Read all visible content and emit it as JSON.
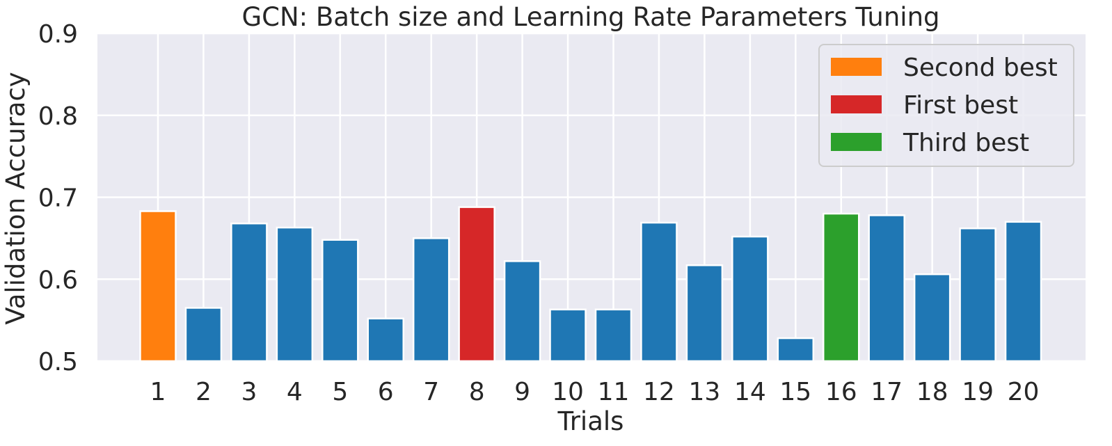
{
  "chart_data": {
    "type": "bar",
    "title": "GCN: Batch size and Learning Rate Parameters Tuning",
    "xlabel": "Trials",
    "ylabel": "Validation Accuracy",
    "categories": [
      "1",
      "2",
      "3",
      "4",
      "5",
      "6",
      "7",
      "8",
      "9",
      "10",
      "11",
      "12",
      "13",
      "14",
      "15",
      "16",
      "17",
      "18",
      "19",
      "20"
    ],
    "values": [
      0.683,
      0.565,
      0.668,
      0.663,
      0.648,
      0.552,
      0.65,
      0.688,
      0.622,
      0.563,
      0.563,
      0.669,
      0.617,
      0.652,
      0.528,
      0.68,
      0.678,
      0.606,
      0.662,
      0.67
    ],
    "bar_roles": [
      "second",
      "default",
      "default",
      "default",
      "default",
      "default",
      "default",
      "first",
      "default",
      "default",
      "default",
      "default",
      "default",
      "default",
      "default",
      "third",
      "default",
      "default",
      "default",
      "default"
    ],
    "ylim": [
      0.5,
      0.9
    ],
    "yticks": [
      "0.5",
      "0.6",
      "0.7",
      "0.8",
      "0.9"
    ],
    "grid": true,
    "legend_placement": "top-right",
    "legend": [
      {
        "role": "second",
        "label": "Second best"
      },
      {
        "role": "first",
        "label": "First best"
      },
      {
        "role": "third",
        "label": "Third best"
      }
    ],
    "colors": {
      "default": "#1f77b4",
      "first": "#d62728",
      "second": "#ff7f0e",
      "third": "#2ca02c",
      "plot_background": "#eaeaf2",
      "grid": "#ffffff"
    }
  }
}
